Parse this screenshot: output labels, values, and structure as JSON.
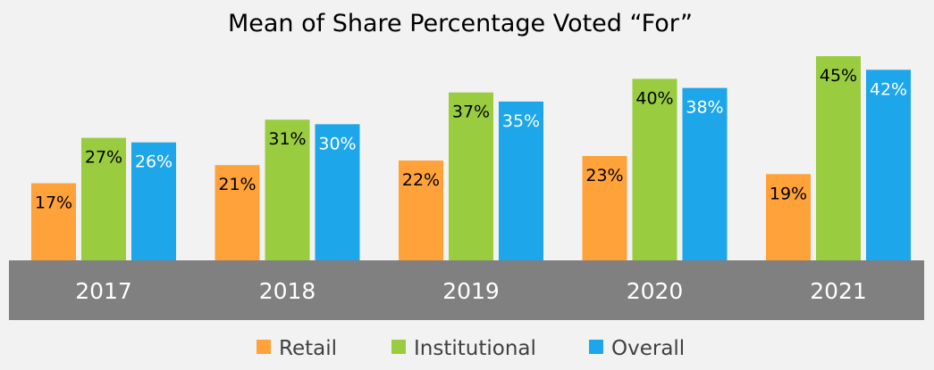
{
  "chart_data": {
    "type": "bar",
    "title": "Mean of Share Percentage Voted “For”",
    "categories": [
      "2017",
      "2018",
      "2019",
      "2020",
      "2021"
    ],
    "series": [
      {
        "name": "Retail",
        "color": "#ffa239",
        "values": [
          17,
          21,
          22,
          23,
          19
        ],
        "labels": [
          "17%",
          "21%",
          "22%",
          "23%",
          "19%"
        ],
        "label_color": "#000000"
      },
      {
        "name": "Institutional",
        "color": "#99cc3f",
        "values": [
          27,
          31,
          37,
          40,
          45
        ],
        "labels": [
          "27%",
          "31%",
          "37%",
          "40%",
          "45%"
        ],
        "label_color": "#000000"
      },
      {
        "name": "Overall",
        "color": "#1ea6ea",
        "values": [
          26,
          30,
          35,
          38,
          42
        ],
        "labels": [
          "26%",
          "30%",
          "35%",
          "38%",
          "42%"
        ],
        "label_color": "#ffffff"
      }
    ],
    "ylim": [
      0,
      45
    ],
    "xlabel": "",
    "ylabel": "",
    "grid": false,
    "legend_position": "bottom",
    "axis_band_color": "#808080"
  }
}
